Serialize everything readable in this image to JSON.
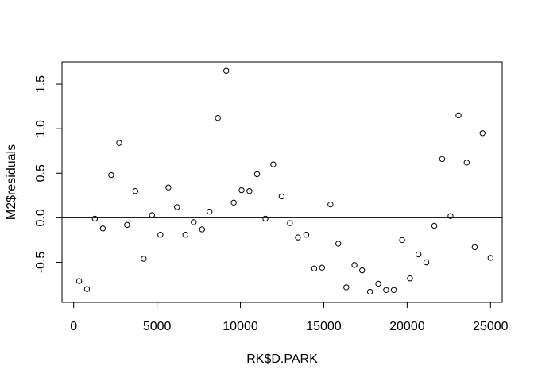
{
  "chart_data": {
    "type": "scatter",
    "xlabel": "RK$D.PARK",
    "ylabel": "M2$residuals",
    "xlim": [
      -700,
      25700
    ],
    "ylim": [
      -0.95,
      1.75
    ],
    "xticks": [
      0,
      5000,
      10000,
      15000,
      20000,
      25000
    ],
    "xtick_labels": [
      "0",
      "5000",
      "10000",
      "15000",
      "20000",
      "25000"
    ],
    "yticks": [
      -0.5,
      0.0,
      0.5,
      1.0,
      1.5
    ],
    "ytick_labels": [
      "-0.5",
      "0.0",
      "0.5",
      "1.0",
      "1.5"
    ],
    "hline": 0,
    "grid": false,
    "x": [
      330,
      800,
      1270,
      1750,
      2250,
      2730,
      3200,
      3700,
      4200,
      4700,
      5200,
      5680,
      6200,
      6700,
      7200,
      7700,
      8150,
      8650,
      9150,
      9600,
      10070,
      10540,
      11000,
      11500,
      11970,
      12470,
      12970,
      13450,
      13950,
      14430,
      14900,
      15400,
      15870,
      16350,
      16840,
      17300,
      17770,
      18270,
      18740,
      19200,
      19700,
      20170,
      20680,
      21150,
      21630,
      22100,
      22600,
      23080,
      23570,
      24050,
      24520,
      25000
    ],
    "y": [
      -0.71,
      -0.8,
      -0.01,
      -0.12,
      0.48,
      0.84,
      -0.08,
      0.3,
      -0.46,
      0.03,
      -0.19,
      0.34,
      0.12,
      -0.19,
      -0.05,
      -0.13,
      0.07,
      1.12,
      1.65,
      0.17,
      0.31,
      0.3,
      0.49,
      -0.01,
      0.6,
      0.24,
      -0.06,
      -0.22,
      -0.19,
      -0.57,
      -0.56,
      0.15,
      -0.29,
      -0.78,
      -0.53,
      -0.59,
      -0.83,
      -0.74,
      -0.81,
      -0.81,
      -0.25,
      -0.68,
      -0.41,
      -0.5,
      -0.09,
      0.66,
      0.02,
      1.15,
      0.62,
      -0.33,
      0.95,
      -0.45
    ]
  }
}
